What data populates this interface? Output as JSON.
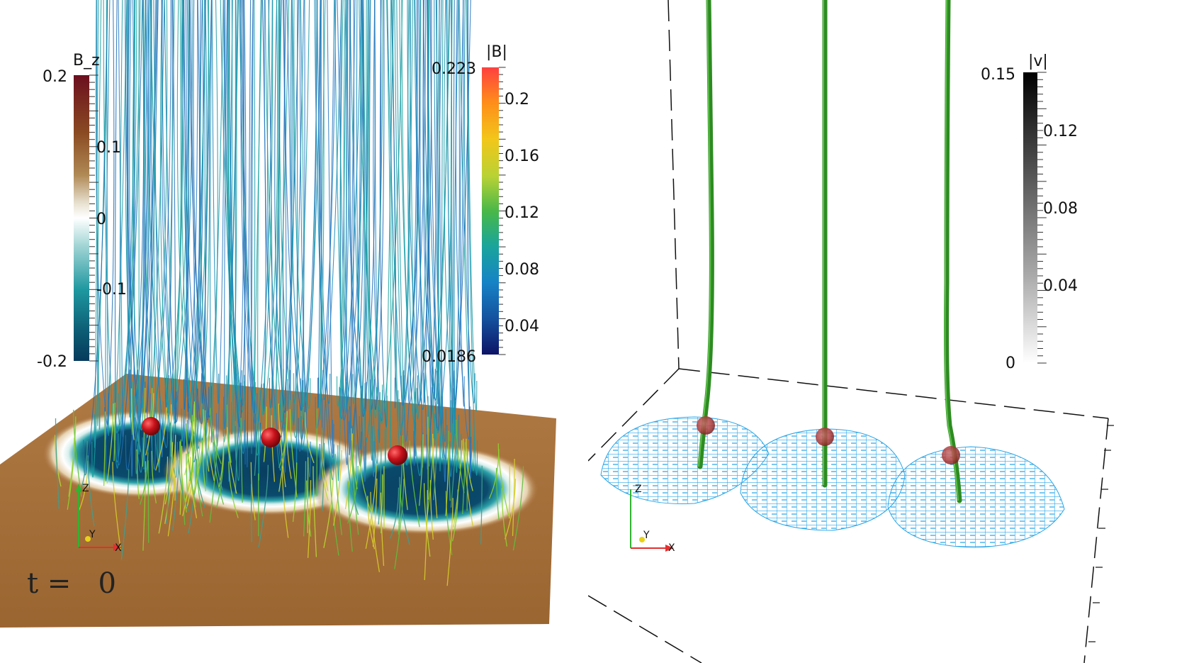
{
  "left_panel": {
    "colorbar_bz": {
      "title": "B_z",
      "ticks": [
        "0.2",
        "0.1",
        "0",
        "-0.1",
        "-0.2"
      ],
      "colors": [
        "#6b0f1f",
        "#8a4a22",
        "#b08a55",
        "#e8e2d2",
        "#ffffff",
        "#9fd4d4",
        "#1f98a0",
        "#0b5b73",
        "#063a5c"
      ]
    },
    "colorbar_b": {
      "title": "|B|",
      "max_label": "0.223",
      "min_label": "0.0186",
      "ticks": [
        "0.2",
        "0.16",
        "0.12",
        "0.08",
        "0.04"
      ],
      "colors": [
        "#ff4040",
        "#ff8c1a",
        "#f2c71a",
        "#b8d234",
        "#49b848",
        "#1aa59a",
        "#1683c6",
        "#144f9c",
        "#0d1466"
      ]
    },
    "time_label": "t =   0",
    "axes": {
      "z": "Z",
      "y": "Y",
      "x": "X"
    },
    "ground_color": "#a8703a",
    "sphere_color": "#c8121b"
  },
  "right_panel": {
    "colorbar_v": {
      "title": "|v|",
      "max_label": "0.15",
      "min_label": "0",
      "ticks": [
        "0.12",
        "0.08",
        "0.04"
      ],
      "colors": [
        "#000000",
        "#555555",
        "#aaaaaa",
        "#ffffff"
      ]
    },
    "axes": {
      "z": "Z",
      "y": "Y",
      "x": "X"
    },
    "tube_color": "#2e8b22",
    "mesh_color": "#2aa6e8"
  }
}
